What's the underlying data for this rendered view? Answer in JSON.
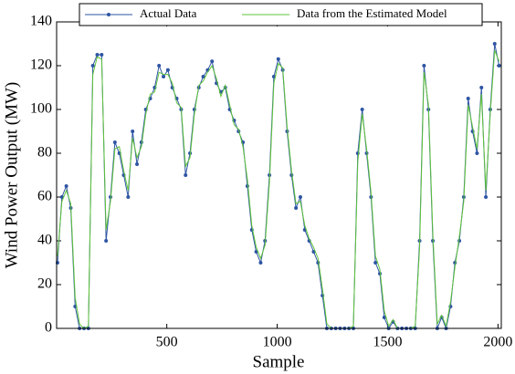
{
  "chart_data": {
    "type": "line",
    "xlabel": "Sample",
    "ylabel": "Wind Power Output (MW)",
    "x": [
      5,
      25,
      45,
      65,
      85,
      105,
      125,
      145,
      165,
      185,
      205,
      225,
      245,
      265,
      285,
      305,
      325,
      345,
      365,
      385,
      405,
      425,
      445,
      465,
      485,
      505,
      525,
      545,
      565,
      585,
      605,
      625,
      645,
      665,
      685,
      705,
      725,
      745,
      765,
      785,
      805,
      825,
      845,
      865,
      885,
      905,
      925,
      945,
      965,
      985,
      1005,
      1025,
      1045,
      1065,
      1085,
      1105,
      1125,
      1145,
      1165,
      1185,
      1205,
      1225,
      1245,
      1265,
      1285,
      1305,
      1325,
      1345,
      1365,
      1385,
      1405,
      1425,
      1445,
      1465,
      1485,
      1505,
      1525,
      1545,
      1565,
      1585,
      1605,
      1625,
      1645,
      1665,
      1685,
      1705,
      1725,
      1745,
      1765,
      1785,
      1805,
      1825,
      1845,
      1865,
      1885,
      1905,
      1925,
      1945,
      1965,
      1985,
      2005
    ],
    "series": [
      {
        "name": "Actual Data",
        "color": "#2e55a3",
        "marker": true,
        "values": [
          30,
          60,
          65,
          55,
          10,
          0,
          0,
          0,
          120,
          125,
          125,
          40,
          60,
          85,
          80,
          70,
          60,
          90,
          75,
          85,
          100,
          105,
          110,
          120,
          115,
          118,
          110,
          105,
          100,
          70,
          80,
          100,
          110,
          115,
          118,
          122,
          112,
          108,
          110,
          100,
          95,
          90,
          85,
          65,
          45,
          35,
          30,
          40,
          70,
          115,
          123,
          118,
          90,
          70,
          55,
          60,
          45,
          40,
          35,
          30,
          15,
          0,
          0,
          0,
          0,
          0,
          0,
          0,
          80,
          100,
          80,
          60,
          30,
          25,
          5,
          0,
          3,
          0,
          0,
          0,
          0,
          0,
          40,
          120,
          100,
          40,
          0,
          5,
          0,
          10,
          30,
          40,
          60,
          105,
          90,
          80,
          110,
          60,
          100,
          130,
          120
        ]
      },
      {
        "name": "Data from the Estimated Model",
        "color": "#5fc43a",
        "marker": false,
        "values": [
          33,
          58,
          63,
          57,
          14,
          2,
          0,
          1,
          116,
          124,
          123,
          45,
          58,
          82,
          83,
          72,
          63,
          87,
          78,
          83,
          98,
          107,
          108,
          117,
          116,
          116,
          112,
          103,
          101,
          74,
          78,
          98,
          111,
          113,
          117,
          120,
          114,
          106,
          111,
          102,
          93,
          91,
          83,
          68,
          47,
          37,
          32,
          38,
          67,
          112,
          121,
          119,
          92,
          72,
          57,
          58,
          47,
          41,
          37,
          32,
          18,
          2,
          0,
          0,
          0,
          0,
          0,
          1,
          76,
          98,
          82,
          62,
          33,
          27,
          8,
          1,
          4,
          0,
          0,
          0,
          0,
          1,
          37,
          117,
          102,
          43,
          2,
          6,
          1,
          12,
          28,
          42,
          58,
          102,
          92,
          82,
          107,
          63,
          98,
          127,
          122
        ]
      }
    ],
    "xlim": [
      1,
      2015
    ],
    "ylim": [
      0,
      140
    ],
    "xticks": [
      500,
      1000,
      1500,
      2000
    ],
    "yticks": [
      0,
      20,
      40,
      60,
      80,
      100,
      120,
      140
    ],
    "legend": "top"
  }
}
